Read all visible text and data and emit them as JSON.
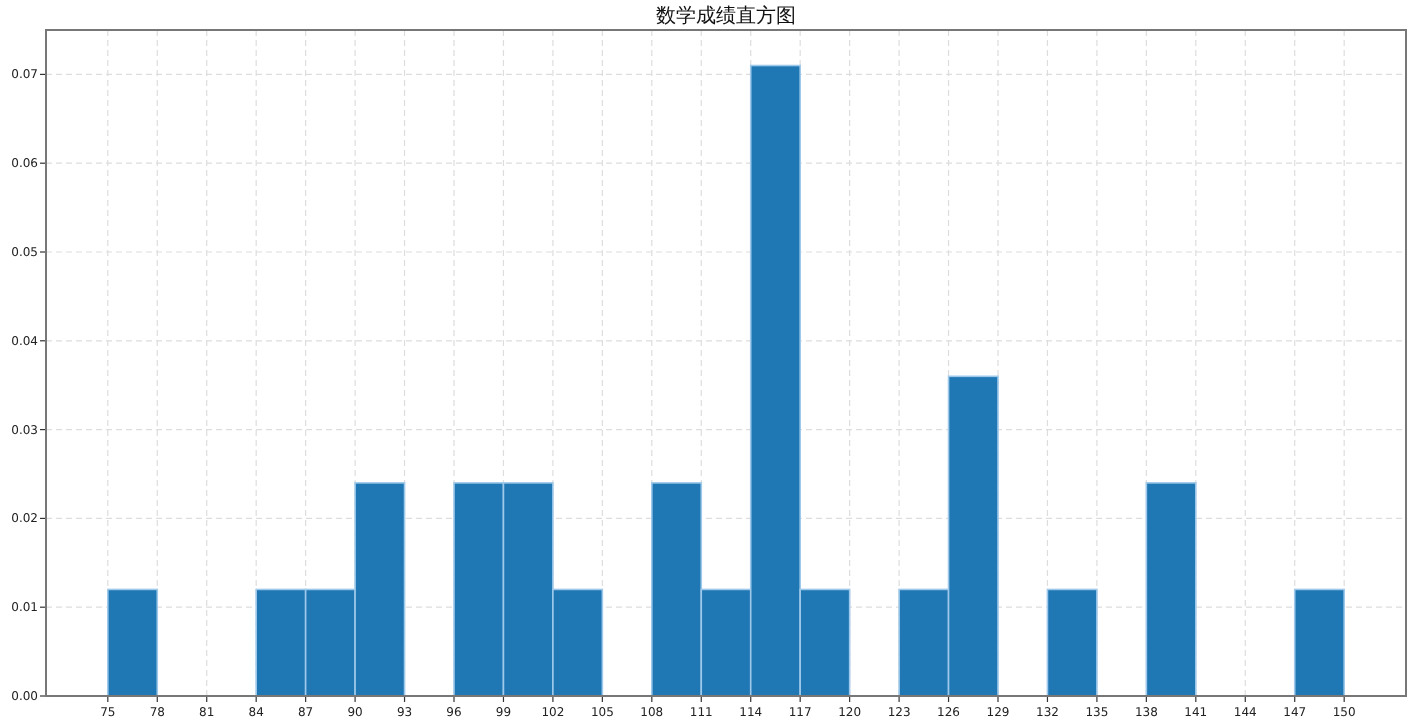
{
  "chart_data": {
    "type": "histogram",
    "title": "数学成绩直方图",
    "bins": [
      75,
      78,
      81,
      84,
      87,
      90,
      93,
      96,
      99,
      102,
      105,
      108,
      111,
      114,
      117,
      120,
      123,
      126,
      129,
      132,
      135,
      138,
      141,
      144,
      147,
      150
    ],
    "values": [
      0.012,
      0,
      0,
      0.012,
      0.012,
      0.024,
      0,
      0.024,
      0.024,
      0.012,
      0,
      0.024,
      0.012,
      0.071,
      0.012,
      0,
      0.012,
      0.036,
      0,
      0.012,
      0,
      0.024,
      0,
      0,
      0.012
    ],
    "color": "#1f77b4",
    "xlim": [
      71.25,
      153.75
    ],
    "xticks": [
      75,
      78,
      81,
      84,
      87,
      90,
      93,
      96,
      99,
      102,
      105,
      108,
      111,
      114,
      117,
      120,
      123,
      126,
      129,
      132,
      135,
      138,
      141,
      144,
      147,
      150
    ],
    "ylim": [
      0,
      0.075
    ],
    "yticks": [
      {
        "value": 0,
        "label": "0.00"
      },
      {
        "value": 0.01,
        "label": "0.01"
      },
      {
        "value": 0.02,
        "label": "0.02"
      },
      {
        "value": 0.03,
        "label": "0.03"
      },
      {
        "value": 0.04,
        "label": "0.04"
      },
      {
        "value": 0.05,
        "label": "0.05"
      },
      {
        "value": 0.06,
        "label": "0.06"
      },
      {
        "value": 0.07,
        "label": "0.07"
      }
    ],
    "grid": true
  }
}
